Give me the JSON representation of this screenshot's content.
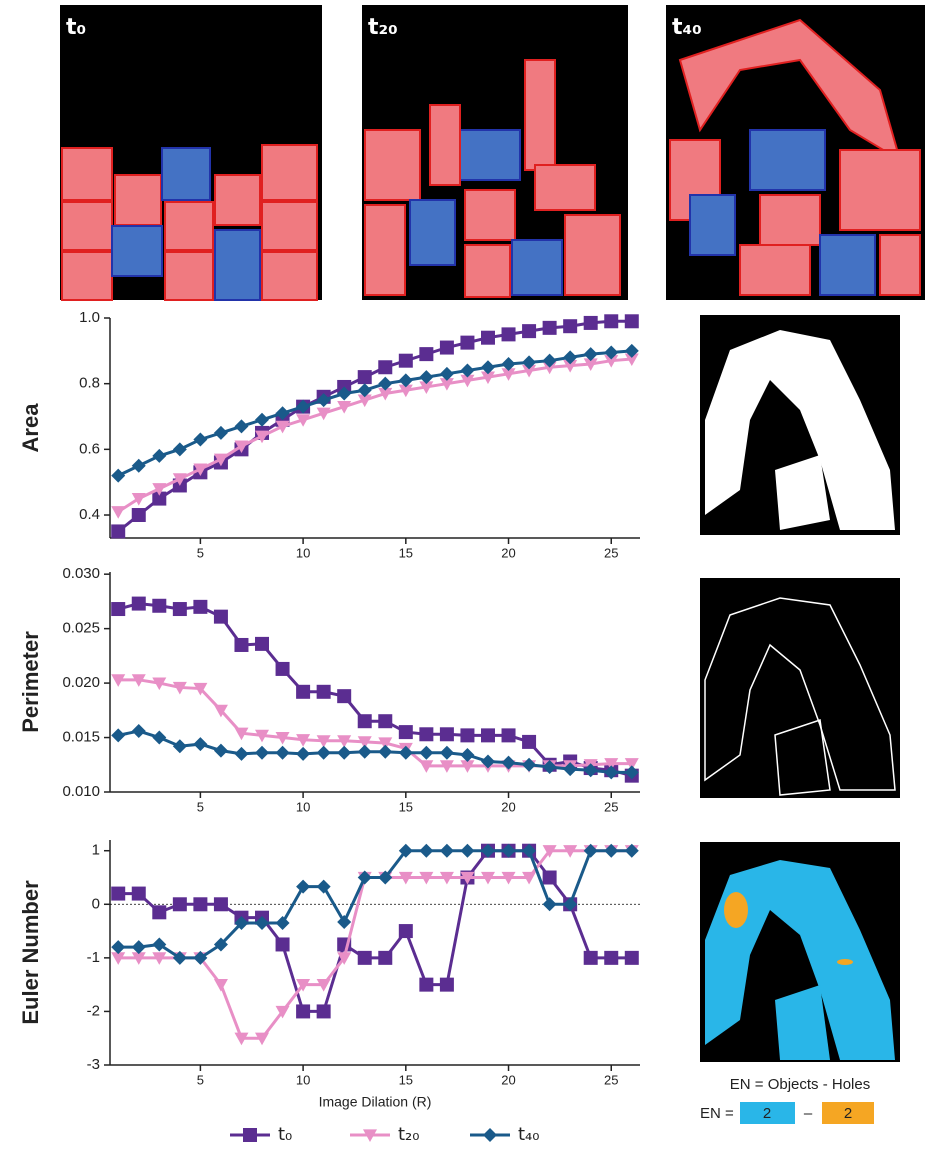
{
  "panels": [
    {
      "label": "t₀"
    },
    {
      "label": "t₂₀"
    },
    {
      "label": "t₄₀"
    }
  ],
  "en_formula": "EN = Objects - Holes",
  "en_equation": {
    "prefix": "EN =",
    "objects": "2",
    "minus": "–",
    "holes": "2"
  },
  "chart_data": [
    {
      "type": "line",
      "ylabel": "Area",
      "x": [
        1,
        2,
        3,
        4,
        5,
        6,
        7,
        8,
        9,
        10,
        11,
        12,
        13,
        14,
        15,
        16,
        17,
        18,
        19,
        20,
        21,
        22,
        23,
        24,
        25,
        26
      ],
      "xlim": [
        0.6,
        26.4
      ],
      "xticks": [
        5,
        10,
        15,
        20,
        25
      ],
      "ylim": [
        0.33,
        1.0
      ],
      "yticks": [
        0.4,
        0.6,
        0.8,
        {
          "value": 1,
          "label": "1.0"
        }
      ],
      "series": [
        {
          "name": "t₀",
          "color": "#5b2d91",
          "marker": "square",
          "values": [
            0.35,
            0.4,
            0.45,
            0.49,
            0.53,
            0.56,
            0.6,
            0.65,
            0.69,
            0.73,
            0.76,
            0.79,
            0.82,
            0.85,
            0.87,
            0.89,
            0.91,
            0.925,
            0.94,
            0.95,
            0.96,
            0.97,
            0.975,
            0.985,
            0.99,
            0.99
          ]
        },
        {
          "name": "t₂₀",
          "color": "#e88fc6",
          "marker": "triangle-down",
          "values": [
            0.41,
            0.45,
            0.48,
            0.51,
            0.54,
            0.57,
            0.61,
            0.64,
            0.67,
            0.69,
            0.71,
            0.73,
            0.75,
            0.77,
            0.78,
            0.79,
            0.8,
            0.81,
            0.82,
            0.83,
            0.84,
            0.85,
            0.855,
            0.86,
            0.87,
            0.875
          ]
        },
        {
          "name": "t₄₀",
          "color": "#1a5a8a",
          "marker": "diamond",
          "values": [
            0.52,
            0.55,
            0.58,
            0.6,
            0.63,
            0.65,
            0.67,
            0.69,
            0.71,
            0.73,
            0.75,
            0.77,
            0.78,
            0.8,
            0.81,
            0.82,
            0.83,
            0.84,
            0.85,
            0.86,
            0.865,
            0.87,
            0.88,
            0.89,
            0.895,
            0.9
          ]
        }
      ]
    },
    {
      "type": "line",
      "ylabel": "Perimeter",
      "x": [
        1,
        2,
        3,
        4,
        5,
        6,
        7,
        8,
        9,
        10,
        11,
        12,
        13,
        14,
        15,
        16,
        17,
        18,
        19,
        20,
        21,
        22,
        23,
        24,
        25,
        26
      ],
      "xlim": [
        0.6,
        26.4
      ],
      "xticks": [
        5,
        10,
        15,
        20,
        25
      ],
      "ylim": [
        0.01,
        0.0302
      ],
      "yticks": [
        {
          "value": 0.01,
          "label": "0.010"
        },
        {
          "value": 0.015,
          "label": "0.015"
        },
        {
          "value": 0.02,
          "label": "0.020"
        },
        {
          "value": 0.025,
          "label": "0.025"
        },
        {
          "value": 0.03,
          "label": "0.030"
        }
      ],
      "series": [
        {
          "color": "#5b2d91",
          "marker": "square",
          "values": [
            0.0268,
            0.0273,
            0.0271,
            0.0268,
            0.027,
            0.0261,
            0.0235,
            0.0236,
            0.0213,
            0.0192,
            0.0192,
            0.0188,
            0.0165,
            0.0165,
            0.0155,
            0.0153,
            0.0153,
            0.0152,
            0.0152,
            0.0152,
            0.0146,
            0.0125,
            0.0128,
            0.0122,
            0.012,
            0.0115
          ]
        },
        {
          "color": "#e88fc6",
          "marker": "triangle-down",
          "values": [
            0.0203,
            0.0203,
            0.02,
            0.0196,
            0.0195,
            0.0175,
            0.0154,
            0.0152,
            0.015,
            0.0148,
            0.0147,
            0.0147,
            0.0146,
            0.0145,
            0.014,
            0.0124,
            0.0124,
            0.0124,
            0.0124,
            0.0124,
            0.0124,
            0.0124,
            0.0124,
            0.0125,
            0.0126,
            0.0126
          ]
        },
        {
          "color": "#1a5a8a",
          "marker": "diamond",
          "values": [
            0.0152,
            0.0156,
            0.015,
            0.0142,
            0.0144,
            0.0138,
            0.0135,
            0.0136,
            0.0136,
            0.0135,
            0.0136,
            0.0136,
            0.0137,
            0.0137,
            0.0136,
            0.0136,
            0.0136,
            0.0134,
            0.0128,
            0.0127,
            0.0125,
            0.0123,
            0.0121,
            0.012,
            0.0118,
            0.0118
          ]
        }
      ]
    },
    {
      "type": "line",
      "ylabel": "Euler Number",
      "xlabel": "Image Dilation (R)",
      "x": [
        1,
        2,
        3,
        4,
        5,
        6,
        7,
        8,
        9,
        10,
        11,
        12,
        13,
        14,
        15,
        16,
        17,
        18,
        19,
        20,
        21,
        22,
        23,
        24,
        25,
        26
      ],
      "xlim": [
        0.6,
        26.4
      ],
      "xticks": [
        5,
        10,
        15,
        20,
        25
      ],
      "ylim": [
        -3,
        1.2
      ],
      "yticks": [
        -3,
        -2,
        -1,
        0,
        1
      ],
      "hline": 0,
      "series": [
        {
          "color": "#5b2d91",
          "marker": "square",
          "values": [
            0.2,
            0.2,
            -0.15,
            0,
            0,
            0,
            -0.25,
            -0.25,
            -0.75,
            -2,
            -2,
            -0.75,
            -1,
            -1,
            -0.5,
            -1.5,
            -1.5,
            0.5,
            1,
            1,
            1,
            0.5,
            0,
            -1,
            -1,
            -1
          ]
        },
        {
          "color": "#e88fc6",
          "marker": "triangle-down",
          "values": [
            -1,
            -1,
            -1,
            -1,
            -1,
            -1.5,
            -2.5,
            -2.5,
            -2,
            -1.5,
            -1.5,
            -1,
            0.5,
            0.5,
            0.5,
            0.5,
            0.5,
            0.5,
            0.5,
            0.5,
            0.5,
            1,
            1,
            1,
            1,
            1
          ]
        },
        {
          "color": "#1a5a8a",
          "marker": "diamond",
          "values": [
            -0.8,
            -0.8,
            -0.75,
            -1,
            -1,
            -0.75,
            -0.35,
            -0.35,
            -0.35,
            0.33,
            0.33,
            -0.33,
            0.5,
            0.5,
            1,
            1,
            1,
            1,
            1,
            1,
            1,
            0,
            0,
            1,
            1,
            1
          ]
        }
      ]
    }
  ]
}
